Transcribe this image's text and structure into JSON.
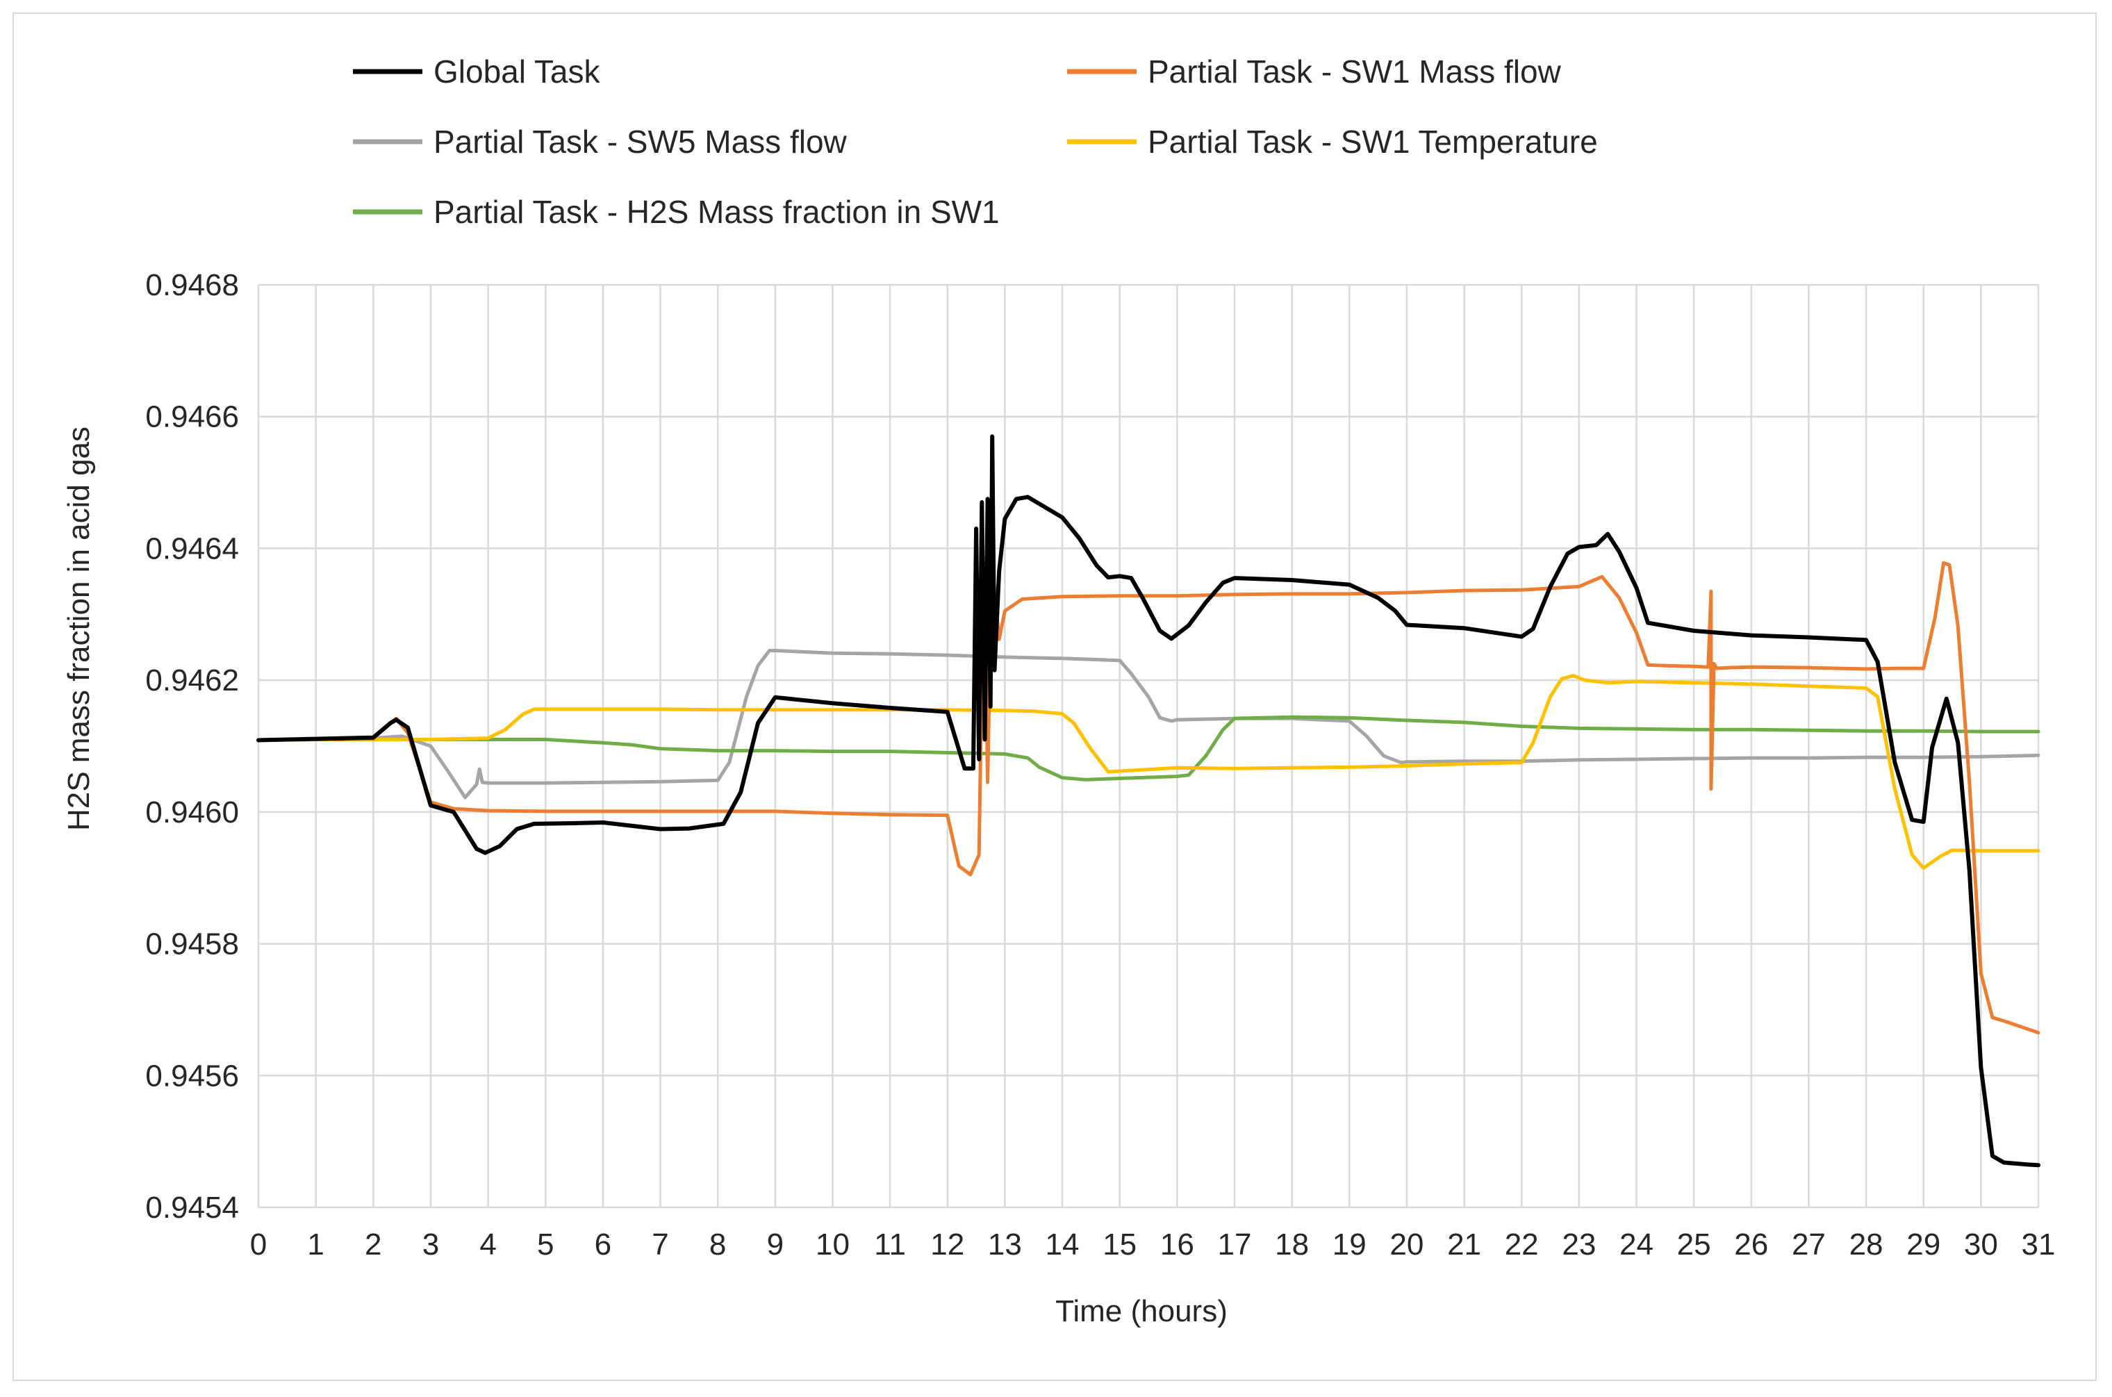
{
  "chart_data": {
    "type": "line",
    "title": "",
    "xlabel": "Time (hours)",
    "ylabel": "H2S mass fraction in acid gas",
    "xlim": [
      0,
      31
    ],
    "ylim": [
      0.9454,
      0.9468
    ],
    "x_ticks": [
      "0",
      "1",
      "2",
      "3",
      "4",
      "5",
      "6",
      "7",
      "8",
      "9",
      "10",
      "11",
      "12",
      "13",
      "14",
      "15",
      "16",
      "17",
      "18",
      "19",
      "20",
      "21",
      "22",
      "23",
      "24",
      "25",
      "26",
      "27",
      "28",
      "29",
      "30",
      "31"
    ],
    "y_ticks": [
      "0.9454",
      "0.9456",
      "0.9458",
      "0.9460",
      "0.9462",
      "0.9464",
      "0.9466",
      "0.9468"
    ],
    "grid": true,
    "legend_position": "top",
    "series": [
      {
        "name": "Global Task",
        "color": "#000000",
        "x": [
          0,
          1,
          2,
          2.3,
          2.4,
          2.6,
          3,
          3.4,
          3.8,
          3.95,
          4.2,
          4.5,
          4.8,
          5.5,
          6,
          7,
          7.5,
          8.1,
          8.4,
          8.7,
          9,
          10,
          11,
          12,
          12.3,
          12.45,
          12.5,
          12.55,
          12.6,
          12.65,
          12.7,
          12.75,
          12.78,
          12.82,
          12.9,
          13,
          13.2,
          13.4,
          14,
          14.3,
          14.6,
          14.8,
          15,
          15.2,
          15.4,
          15.7,
          15.9,
          16.2,
          16.5,
          16.8,
          17,
          18,
          19,
          19.5,
          19.8,
          20,
          21,
          22,
          22.2,
          22.5,
          22.8,
          23,
          23.3,
          23.5,
          23.7,
          24,
          24.2,
          25,
          26,
          27,
          28,
          28.2,
          28.5,
          28.8,
          29,
          29.15,
          29.4,
          29.6,
          29.8,
          30,
          30.2,
          30.4,
          30.8,
          31
        ],
        "y": [
          0.946109,
          0.946111,
          0.946113,
          0.946135,
          0.94614,
          0.946128,
          0.94601,
          0.946,
          0.945944,
          0.945938,
          0.945948,
          0.945974,
          0.945982,
          0.945983,
          0.945984,
          0.945974,
          0.945975,
          0.945982,
          0.94603,
          0.946135,
          0.946174,
          0.946165,
          0.946158,
          0.946152,
          0.946066,
          0.946066,
          0.94643,
          0.94608,
          0.94647,
          0.94611,
          0.946475,
          0.94616,
          0.94657,
          0.946215,
          0.946365,
          0.946445,
          0.946475,
          0.946478,
          0.946447,
          0.946415,
          0.946374,
          0.946356,
          0.946358,
          0.946355,
          0.946325,
          0.946275,
          0.946263,
          0.946283,
          0.946318,
          0.946348,
          0.946355,
          0.946352,
          0.946345,
          0.946325,
          0.946305,
          0.946284,
          0.946279,
          0.946266,
          0.946278,
          0.946342,
          0.946392,
          0.946402,
          0.946405,
          0.946422,
          0.946395,
          0.94634,
          0.946287,
          0.946275,
          0.946268,
          0.946265,
          0.946261,
          0.946228,
          0.946075,
          0.945988,
          0.945985,
          0.946098,
          0.946172,
          0.946105,
          0.945911,
          0.945612,
          0.945478,
          0.945468,
          0.945465,
          0.945464
        ]
      },
      {
        "name": "Partial Task - SW1 Mass flow",
        "color": "#ed7d31",
        "x": [
          0,
          1,
          2,
          2.2,
          2.4,
          2.6,
          3,
          3.4,
          4,
          5,
          6,
          7,
          8,
          9,
          10,
          11,
          12,
          12.2,
          12.4,
          12.55,
          12.6,
          12.65,
          12.7,
          12.75,
          12.8,
          12.9,
          13,
          13.3,
          14,
          15,
          16,
          17,
          18,
          19,
          20,
          21,
          22,
          23,
          23.4,
          23.7,
          24,
          24.2,
          24.5,
          25,
          25.25,
          25.3,
          25.3,
          25.35,
          25.4,
          25.6,
          26,
          27,
          28,
          28.5,
          29,
          29.2,
          29.35,
          29.45,
          29.6,
          29.8,
          30,
          30.2,
          30.4,
          31
        ],
        "y": [
          0.946109,
          0.94611,
          0.946111,
          0.946128,
          0.946142,
          0.94612,
          0.946015,
          0.946005,
          0.946002,
          0.946001,
          0.946001,
          0.946001,
          0.946001,
          0.946001,
          0.945998,
          0.945996,
          0.945995,
          0.945918,
          0.945905,
          0.945935,
          0.946215,
          0.946338,
          0.946045,
          0.946275,
          0.946355,
          0.946262,
          0.946305,
          0.946323,
          0.946327,
          0.946328,
          0.946328,
          0.94633,
          0.946331,
          0.946331,
          0.946333,
          0.946336,
          0.946337,
          0.946342,
          0.946357,
          0.946325,
          0.946272,
          0.946223,
          0.946222,
          0.946221,
          0.94622,
          0.946335,
          0.946035,
          0.946225,
          0.946218,
          0.946219,
          0.94622,
          0.946219,
          0.946217,
          0.946218,
          0.946218,
          0.946295,
          0.946378,
          0.946375,
          0.946282,
          0.946045,
          0.945755,
          0.945688,
          0.945683,
          0.945665
        ]
      },
      {
        "name": "Partial Task - SW5 Mass flow",
        "color": "#a5a5a5",
        "x": [
          0,
          1,
          2,
          2.5,
          3,
          3.3,
          3.6,
          3.8,
          3.85,
          3.9,
          4,
          5,
          6,
          7,
          8,
          8.2,
          8.5,
          8.7,
          8.9,
          9,
          10,
          11,
          12,
          13,
          14,
          15,
          15.2,
          15.5,
          15.7,
          15.9,
          16,
          17,
          18,
          19,
          19.3,
          19.6,
          19.9,
          20,
          21,
          22,
          23,
          24,
          25,
          26,
          27,
          28,
          29,
          30,
          31
        ],
        "y": [
          0.946109,
          0.946111,
          0.946112,
          0.946115,
          0.9461,
          0.946062,
          0.946022,
          0.946042,
          0.946065,
          0.946045,
          0.946044,
          0.946044,
          0.946045,
          0.946046,
          0.946048,
          0.946075,
          0.946175,
          0.946222,
          0.946245,
          0.946245,
          0.946241,
          0.94624,
          0.946238,
          0.946235,
          0.946233,
          0.94623,
          0.94621,
          0.946175,
          0.946143,
          0.946138,
          0.94614,
          0.946142,
          0.946142,
          0.946138,
          0.946115,
          0.946085,
          0.946075,
          0.946076,
          0.946077,
          0.946077,
          0.946079,
          0.94608,
          0.946081,
          0.946082,
          0.946082,
          0.946083,
          0.946083,
          0.946084,
          0.946086
        ]
      },
      {
        "name": "Partial Task - SW1 Temperature",
        "color": "#ffc000",
        "x": [
          0,
          1,
          2,
          3,
          4,
          4.3,
          4.6,
          4.8,
          5,
          6,
          7,
          8,
          9,
          10,
          11,
          12,
          13,
          13.5,
          14,
          14.2,
          14.5,
          14.8,
          15,
          16,
          17,
          18,
          19,
          20,
          21,
          22,
          22.2,
          22.5,
          22.7,
          22.9,
          23.1,
          23.5,
          24,
          25,
          26,
          27,
          28,
          28.2,
          28.5,
          28.8,
          29,
          29.3,
          29.5,
          30,
          31
        ],
        "y": [
          0.946109,
          0.94611,
          0.94611,
          0.94611,
          0.946112,
          0.946125,
          0.946148,
          0.946156,
          0.946156,
          0.946156,
          0.946156,
          0.946155,
          0.946155,
          0.946155,
          0.946155,
          0.946155,
          0.946154,
          0.946153,
          0.946149,
          0.946135,
          0.946095,
          0.946061,
          0.946062,
          0.946067,
          0.946066,
          0.946067,
          0.946068,
          0.94607,
          0.946073,
          0.946075,
          0.946105,
          0.946175,
          0.946202,
          0.946207,
          0.9462,
          0.946196,
          0.946198,
          0.946196,
          0.946194,
          0.946191,
          0.946188,
          0.946175,
          0.946035,
          0.945935,
          0.945915,
          0.945933,
          0.945942,
          0.945941,
          0.945941
        ]
      },
      {
        "name": "Partial Task - H2S Mass fraction in SW1",
        "color": "#70ad47",
        "x": [
          0,
          1,
          2,
          3,
          4,
          5,
          6,
          6.5,
          7,
          8,
          9,
          10,
          11,
          12,
          13,
          13.4,
          13.6,
          14,
          14.4,
          15,
          16,
          16.2,
          16.5,
          16.8,
          17,
          18,
          19,
          20,
          21,
          22,
          23,
          24,
          25,
          26,
          27,
          28,
          29,
          30,
          31
        ],
        "y": [
          0.946109,
          0.94611,
          0.94611,
          0.94611,
          0.94611,
          0.94611,
          0.946105,
          0.946102,
          0.946096,
          0.946093,
          0.946093,
          0.946092,
          0.946092,
          0.94609,
          0.946088,
          0.946082,
          0.946068,
          0.946052,
          0.946049,
          0.946051,
          0.946054,
          0.946056,
          0.946085,
          0.946125,
          0.946142,
          0.946144,
          0.946143,
          0.946139,
          0.946136,
          0.94613,
          0.946127,
          0.946126,
          0.946125,
          0.946125,
          0.946124,
          0.946123,
          0.946123,
          0.946122,
          0.946122
        ]
      }
    ]
  }
}
